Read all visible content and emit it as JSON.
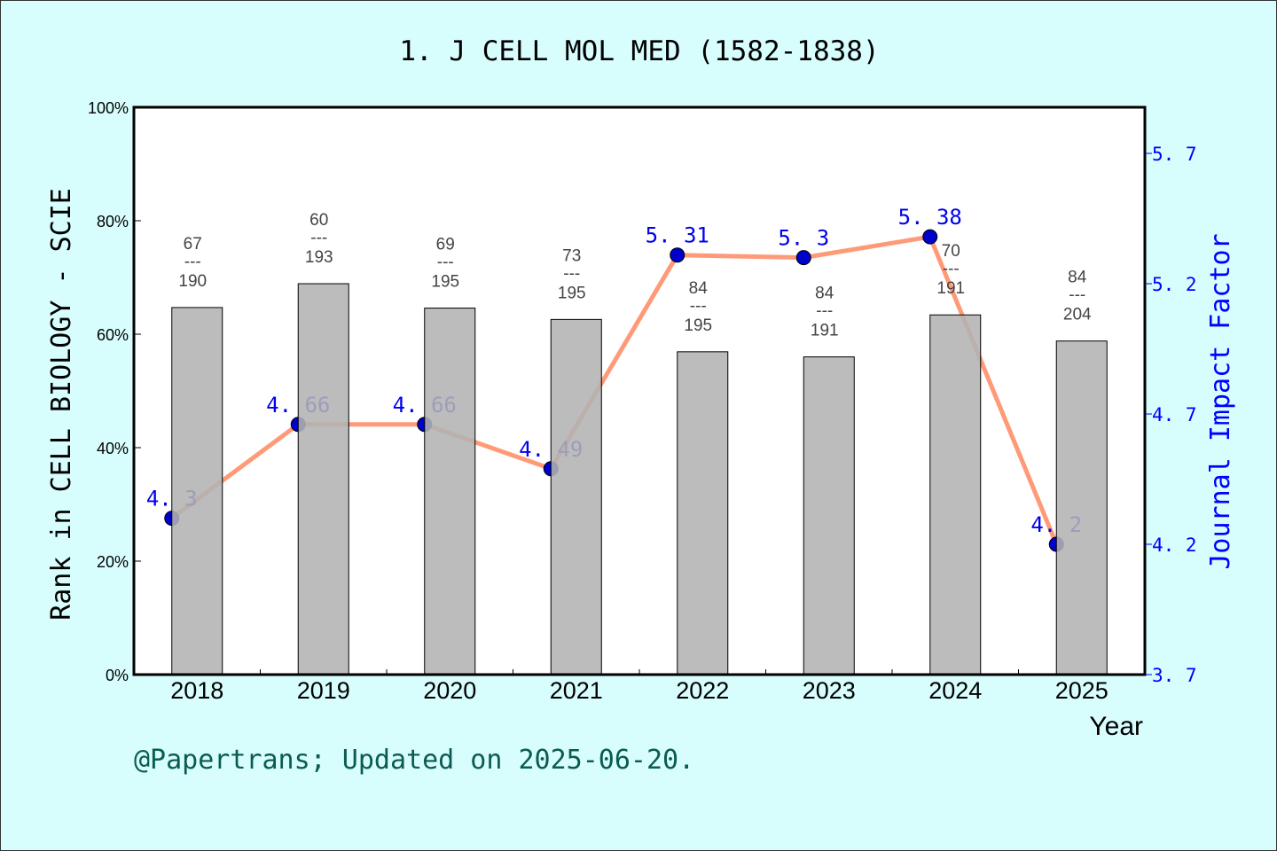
{
  "chart_data": {
    "type": "bar+line",
    "title": "1. J CELL MOL MED (1582-1838)",
    "xlabel": "Year",
    "ylabel_left": "Rank in CELL BIOLOGY - SCIE",
    "ylabel_right": "Journal Impact Factor",
    "categories": [
      "2018",
      "2019",
      "2020",
      "2021",
      "2022",
      "2023",
      "2024",
      "2025"
    ],
    "left_axis": {
      "ylim": [
        0,
        100
      ],
      "ticks": [
        "0%",
        "20%",
        "40%",
        "60%",
        "80%",
        "100%"
      ]
    },
    "right_axis": {
      "ylim": [
        3.7,
        5.877
      ],
      "ticks": [
        "3. 7",
        "4. 2",
        "4. 7",
        "5. 2",
        "5. 7"
      ]
    },
    "bars": {
      "rank": [
        67,
        60,
        69,
        73,
        84,
        84,
        70,
        84
      ],
      "total": [
        190,
        193,
        195,
        195,
        195,
        191,
        191,
        204
      ],
      "values_percent": [
        64.7,
        68.9,
        64.6,
        62.6,
        56.9,
        56.0,
        63.4,
        58.8
      ],
      "color": "#b3b3b3"
    },
    "line": {
      "values": [
        4.3,
        4.66,
        4.66,
        4.49,
        5.31,
        5.3,
        5.38,
        4.2
      ],
      "labels": [
        "4. 3",
        "4. 66",
        "4. 66",
        "4. 49",
        "5. 31",
        "5. 3",
        "5. 38",
        "4. 2"
      ],
      "color": "#ff9a78",
      "marker_color": "#0000cc"
    },
    "grid": false
  },
  "footer": "@Papertrans; Updated on 2025-06-20."
}
